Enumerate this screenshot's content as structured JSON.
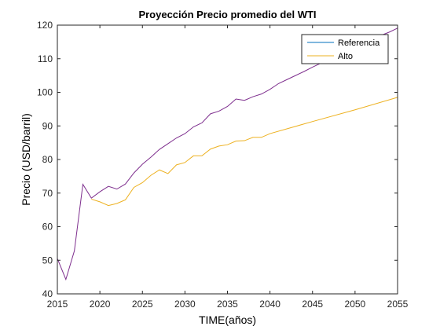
{
  "chart_data": {
    "type": "line",
    "title": "Proyección Precio promedio del WTI",
    "xlabel": "TIME(años)",
    "ylabel": "Precio (USD/barril)",
    "xlim": [
      2015,
      2055
    ],
    "ylim": [
      40,
      120
    ],
    "xticks": [
      2015,
      2020,
      2025,
      2030,
      2035,
      2040,
      2045,
      2050,
      2055
    ],
    "yticks": [
      40,
      50,
      60,
      70,
      80,
      90,
      100,
      110,
      120
    ],
    "grid": false,
    "legend_position": "top-right",
    "series": [
      {
        "name": "Referencia",
        "color": "#0072BD",
        "x": [
          2015,
          2016,
          2017,
          2018,
          2019,
          2020,
          2021,
          2022,
          2023,
          2024,
          2025,
          2026,
          2027,
          2028,
          2029,
          2030,
          2031,
          2032,
          2033,
          2034,
          2035,
          2036,
          2037,
          2038,
          2039,
          2040,
          2041,
          2042,
          2043,
          2044,
          2045,
          2046,
          2047,
          2048,
          2049,
          2050,
          2051,
          2052,
          2053,
          2054,
          2055
        ],
        "values": [
          50.5,
          44.3,
          52.8,
          72.6,
          68.5,
          70.4,
          72.0,
          71.2,
          72.7,
          76.0,
          78.6,
          80.7,
          83.0,
          84.7,
          86.4,
          87.7,
          89.7,
          90.9,
          93.6,
          94.4,
          95.8,
          98.0,
          97.6,
          98.7,
          99.5,
          100.9,
          102.6,
          103.8,
          105.0,
          106.2,
          107.5,
          108.7,
          109.9,
          111.1,
          112.3,
          113.5,
          114.6,
          115.8,
          116.9,
          117.9,
          119.1
        ]
      },
      {
        "name": "Alto",
        "color": "#EDB120",
        "x": [
          2019,
          2020,
          2021,
          2022,
          2023,
          2024,
          2025,
          2026,
          2027,
          2028,
          2029,
          2030,
          2031,
          2032,
          2033,
          2034,
          2035,
          2036,
          2037,
          2038,
          2039,
          2040,
          2045,
          2050,
          2055
        ],
        "values": [
          68.2,
          67.4,
          66.3,
          66.9,
          68.0,
          71.7,
          73.1,
          75.3,
          76.9,
          75.8,
          78.4,
          79.1,
          81.1,
          81.1,
          83.1,
          84.0,
          84.4,
          85.5,
          85.6,
          86.6,
          86.6,
          87.7,
          91.3,
          94.8,
          98.5
        ]
      }
    ]
  }
}
